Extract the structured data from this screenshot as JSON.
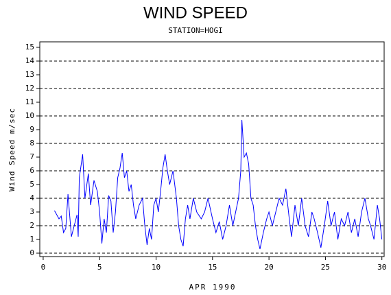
{
  "chart_data": {
    "type": "line",
    "title": "WIND SPEED",
    "subtitle": "STATION=HOGI",
    "xlabel": "APR 1990",
    "ylabel": "Wind Speed m/sec",
    "xlim": [
      -0.3,
      30.2
    ],
    "xticks": [
      0,
      5,
      10,
      15,
      20,
      25,
      30
    ],
    "ylim": [
      -0.25,
      15.4
    ],
    "yticks": [
      0,
      1,
      2,
      3,
      4,
      5,
      6,
      7,
      8,
      9,
      10,
      11,
      12,
      13,
      14,
      15
    ],
    "grid_lines": [
      0,
      2,
      4,
      6,
      8,
      10,
      12,
      14
    ],
    "series": [
      {
        "name": "Wind Speed",
        "color": "#0000ff",
        "x": [
          1,
          1.2,
          1.4,
          1.6,
          1.8,
          2,
          2.2,
          2.5,
          3,
          3.1,
          3.2,
          3.5,
          3.7,
          4,
          4.2,
          4.5,
          4.8,
          5,
          5.2,
          5.4,
          5.6,
          5.8,
          6,
          6.2,
          6.4,
          6.6,
          6.8,
          7,
          7.2,
          7.4,
          7.6,
          7.8,
          8,
          8.2,
          8.5,
          8.8,
          9,
          9.2,
          9.4,
          9.6,
          9.8,
          10,
          10.2,
          10.4,
          10.6,
          10.8,
          11,
          11.2,
          11.5,
          11.8,
          12,
          12.2,
          12.4,
          12.6,
          12.8,
          13,
          13.3,
          13.6,
          14,
          14.3,
          14.6,
          15,
          15.3,
          15.6,
          15.9,
          16.2,
          16.5,
          16.8,
          17,
          17.3,
          17.5,
          17.6,
          17.8,
          18,
          18.2,
          18.4,
          18.6,
          18.8,
          19,
          19.2,
          19.5,
          19.8,
          20,
          20.3,
          20.6,
          20.9,
          21.2,
          21.5,
          21.8,
          22,
          22.3,
          22.6,
          22.9,
          23.2,
          23.5,
          23.8,
          24,
          24.3,
          24.6,
          24.9,
          25.2,
          25.5,
          25.8,
          26.1,
          26.4,
          26.7,
          27,
          27.3,
          27.6,
          27.9,
          28.2,
          28.5,
          28.8,
          29,
          29.3,
          29.6,
          29.8,
          30
        ],
        "values": [
          3.1,
          2.8,
          2.5,
          2.7,
          1.5,
          1.8,
          4.3,
          1.2,
          2.8,
          1.2,
          5.5,
          7.2,
          4.0,
          5.8,
          3.5,
          5.3,
          4.5,
          3.0,
          0.7,
          2.5,
          1.5,
          4.2,
          3.8,
          1.5,
          3.0,
          5.5,
          6.2,
          7.3,
          5.5,
          6.0,
          4.5,
          5.0,
          3.5,
          2.5,
          3.5,
          4.0,
          2.0,
          0.6,
          1.8,
          1.0,
          3.5,
          4.0,
          3.0,
          4.5,
          6.2,
          7.2,
          6.0,
          5.0,
          6.0,
          4.0,
          2.0,
          1.0,
          0.5,
          2.5,
          3.5,
          2.5,
          4.0,
          3.0,
          2.5,
          3.0,
          4.0,
          2.5,
          1.5,
          2.3,
          1.0,
          2.0,
          3.5,
          2.0,
          2.8,
          4.0,
          6.0,
          9.7,
          7.0,
          7.3,
          6.5,
          4.0,
          3.5,
          2.0,
          1.0,
          0.3,
          1.5,
          2.5,
          3.0,
          2.0,
          3.0,
          4.0,
          3.5,
          4.7,
          2.5,
          1.2,
          3.5,
          2.0,
          4.0,
          2.0,
          1.2,
          3.0,
          2.5,
          1.5,
          0.4,
          2.0,
          3.8,
          2.0,
          3.0,
          1.0,
          2.5,
          2.0,
          3.0,
          1.5,
          2.5,
          1.2,
          3.0,
          4.0,
          2.5,
          2.0,
          1.0,
          3.5,
          2.5,
          1.0
        ]
      }
    ]
  }
}
